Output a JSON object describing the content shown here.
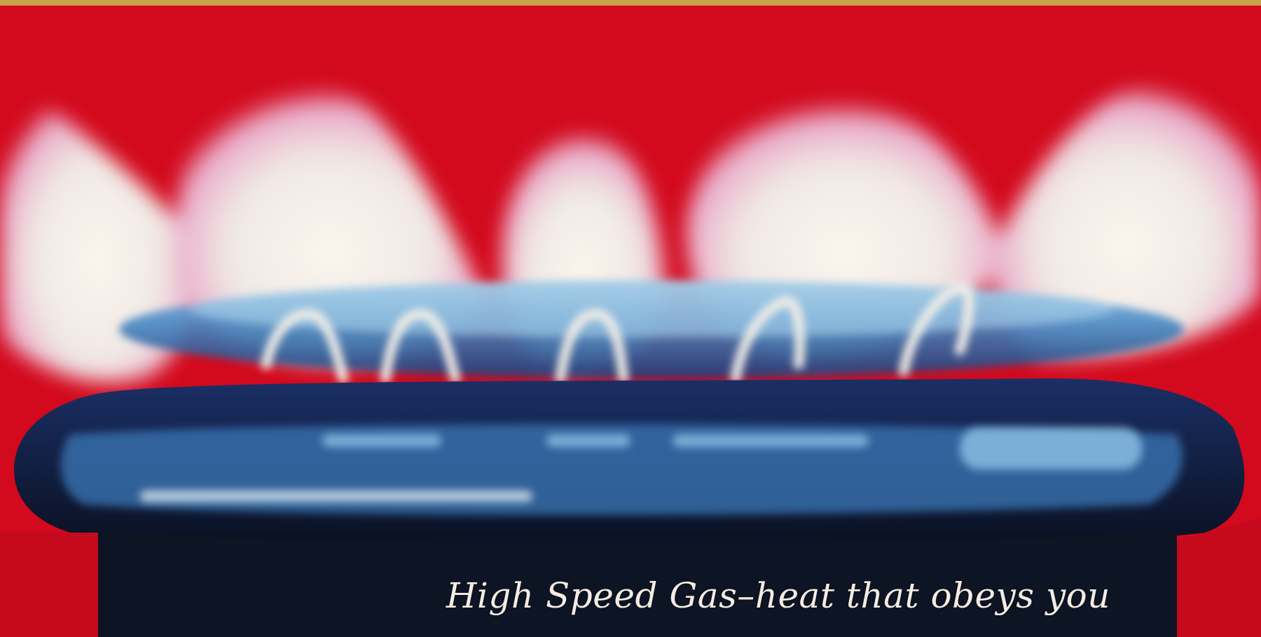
{
  "image": {
    "kind": "vintage advertisement photograph",
    "subject": "blue gas burner flame over red background",
    "colors": {
      "background_red": "#d3091d",
      "flame_white": "#f2ede6",
      "flame_blue": "#3f7fbf",
      "burner_dark": "#0d1a33",
      "caption_text": "#f4ece2"
    }
  },
  "caption": {
    "text": "High Speed Gas–heat that obeys you"
  }
}
